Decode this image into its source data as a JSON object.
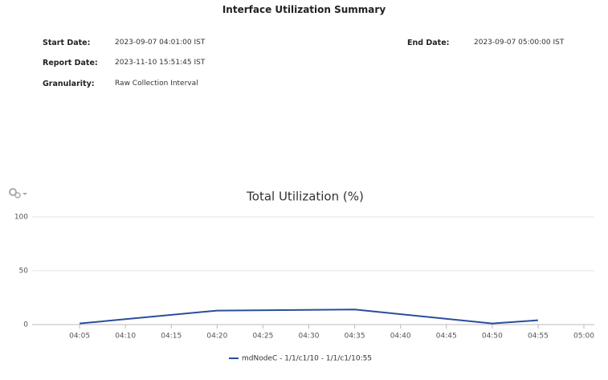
{
  "report": {
    "title": "Interface Utilization Summary",
    "fields": [
      {
        "label": "Start Date:",
        "value": "2023-09-07 04:01:00 IST"
      },
      {
        "label": "End Date:",
        "value": "2023-09-07 05:00:00 IST"
      },
      {
        "label": "Report Date:",
        "value": "2023-11-10 15:51:45 IST"
      },
      {
        "label": "Granularity:",
        "value": "Raw Collection Interval"
      }
    ]
  },
  "chart_data": {
    "type": "line",
    "title": "Total Utilization (%)",
    "x": [
      "04:05",
      "04:20",
      "04:35",
      "04:50",
      "04:55"
    ],
    "series": [
      {
        "name": "mdNodeC - 1/1/c1/10 - 1/1/c1/10:55",
        "color": "#2a4d9b",
        "values": [
          1,
          13,
          14,
          1,
          4
        ]
      }
    ],
    "xlim": [
      "04:00",
      "05:00"
    ],
    "xticks": [
      "04:05",
      "04:10",
      "04:15",
      "04:20",
      "04:25",
      "04:30",
      "04:35",
      "04:40",
      "04:45",
      "04:50",
      "04:55",
      "05:00"
    ],
    "ylim": [
      0,
      100
    ],
    "yticks": [
      0,
      50,
      100
    ],
    "grid": true
  }
}
